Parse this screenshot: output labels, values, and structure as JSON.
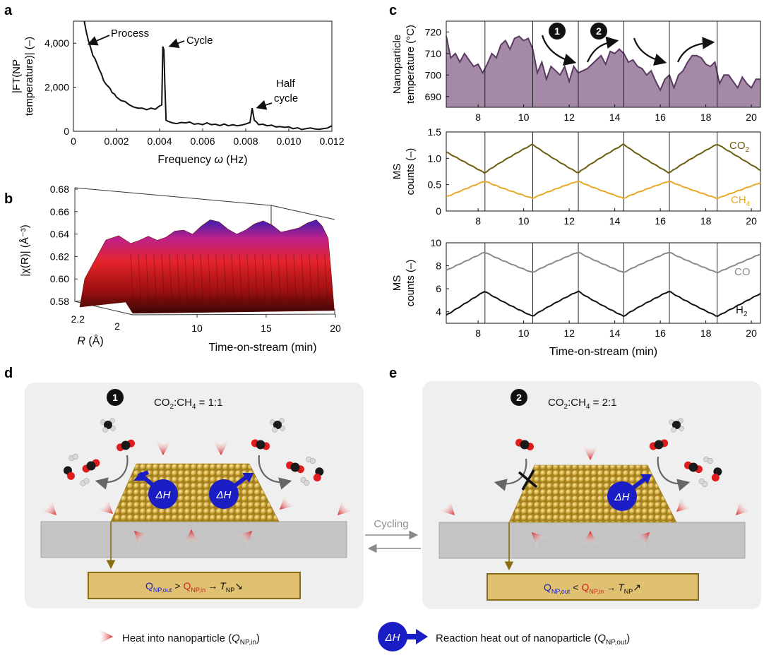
{
  "panel_labels": {
    "a": "a",
    "b": "b",
    "c": "c",
    "d": "d",
    "e": "e"
  },
  "colors": {
    "co2": "#6b5d10",
    "ch4": "#e8a928",
    "co": "#8a8a8a",
    "h2": "#111111",
    "temp_fill": "#a48aa6",
    "temp_line": "#5a3a63",
    "gold": "#c8a033",
    "heat": "#d42020",
    "dh": "#1a1ec4",
    "q_out": "#1a1ec4",
    "q_in": "#d42020",
    "box_fill": "#e0c171",
    "box_stroke": "#8a6d10",
    "substrate": "#c4c4c4",
    "panel_bg": "#efefef"
  },
  "chart_data": [
    {
      "id": "a",
      "type": "line",
      "xlabel_pre": "Frequency ",
      "xlabel_sym": "ω",
      "xlabel_post": " (Hz)",
      "ylabel_line1": "|FT(NP",
      "ylabel_line2": "temperature)| (–)",
      "xlim": [
        0,
        0.012
      ],
      "ylim": [
        0,
        5000
      ],
      "xticks": [
        0,
        0.002,
        0.004,
        0.006,
        0.008,
        0.01,
        0.012
      ],
      "xtick_labels": [
        "0",
        "0.002",
        "0.004",
        "0.006",
        "0.008",
        "0.010",
        "0.012"
      ],
      "yticks": [
        0,
        2000,
        4000
      ],
      "ytick_labels": [
        "0",
        "2,000",
        "4,000"
      ],
      "annotations": {
        "process": "Process",
        "cycle": "Cycle",
        "half_line1": "Half",
        "half_line2": "cycle"
      },
      "x": [
        0.0005,
        0.0006,
        0.0007,
        0.0008,
        0.0009,
        0.001,
        0.0011,
        0.0012,
        0.0013,
        0.0014,
        0.0015,
        0.0016,
        0.0017,
        0.0018,
        0.0019,
        0.002,
        0.0022,
        0.0024,
        0.0026,
        0.0028,
        0.003,
        0.0032,
        0.0034,
        0.0036,
        0.0038,
        0.004,
        0.0041,
        0.00415,
        0.0042,
        0.00425,
        0.0043,
        0.0044,
        0.0046,
        0.0048,
        0.005,
        0.0052,
        0.0054,
        0.0056,
        0.0058,
        0.006,
        0.0062,
        0.0064,
        0.0066,
        0.0068,
        0.007,
        0.0072,
        0.0074,
        0.0076,
        0.0078,
        0.008,
        0.0082,
        0.0083,
        0.0084,
        0.0085,
        0.0086,
        0.0088,
        0.009,
        0.0092,
        0.0094,
        0.0096,
        0.0098,
        0.01,
        0.0102,
        0.0104,
        0.0106,
        0.0108,
        0.011,
        0.0112,
        0.0114,
        0.0116,
        0.0118,
        0.012
      ],
      "y": [
        5000,
        4500,
        4100,
        3800,
        3450,
        3300,
        3050,
        2800,
        2600,
        2300,
        2150,
        2050,
        1950,
        1750,
        1700,
        1550,
        1400,
        1350,
        1200,
        1100,
        1050,
        1050,
        980,
        1050,
        1000,
        1150,
        1200,
        3850,
        3700,
        2000,
        500,
        450,
        380,
        350,
        400,
        380,
        420,
        320,
        350,
        300,
        380,
        300,
        320,
        260,
        330,
        250,
        300,
        250,
        280,
        330,
        400,
        1050,
        500,
        420,
        300,
        320,
        250,
        280,
        200,
        210,
        180,
        200,
        120,
        160,
        80,
        120,
        150,
        110,
        90,
        120,
        150,
        250
      ]
    },
    {
      "id": "b",
      "type": "area",
      "zlabel": "|χ(R)| (Å⁻³)",
      "ylabel_sym": "R",
      "ylabel_post": " (Å)",
      "xlabel": "Time-on-stream (min)",
      "zticks": [
        "0.58",
        "0.60",
        "0.62",
        "0.64",
        "0.66",
        "0.68"
      ],
      "xticks": [
        "10",
        "15",
        "20"
      ],
      "rticks": [
        "2.2",
        "2"
      ],
      "time_axis_min": [
        6.6,
        20.4
      ],
      "envelope_z": [
        0.647,
        0.65,
        0.654,
        0.65,
        0.653,
        0.659,
        0.66,
        0.656,
        0.664,
        0.67,
        0.668,
        0.661,
        0.656,
        0.66,
        0.666,
        0.669,
        0.665,
        0.658,
        0.66,
        0.662,
        0.667,
        0.67,
        0.664,
        0.652,
        0.62,
        0.585
      ],
      "envelope_t": [
        6.6,
        7.2,
        7.8,
        8.4,
        9.0,
        9.6,
        10.2,
        10.8,
        11.4,
        12.0,
        12.6,
        13.2,
        13.8,
        14.4,
        15.0,
        15.6,
        16.2,
        16.8,
        17.4,
        18.0,
        18.6,
        19.2,
        19.6,
        20.0,
        20.2,
        20.4
      ]
    },
    {
      "id": "c1",
      "type": "area",
      "ylabel_line1": "Nanoparticle",
      "ylabel_line2": "temperature (°C)",
      "xlim": [
        6.6,
        20.4
      ],
      "ylim": [
        685,
        725
      ],
      "yticks": [
        690,
        700,
        710,
        720
      ],
      "ytick_labels": [
        "690",
        "700",
        "710",
        "720"
      ],
      "xticks": [
        8,
        10,
        12,
        14,
        16,
        18,
        20
      ],
      "xtick_labels": [
        "8",
        "10",
        "12",
        "14",
        "16",
        "18",
        "20"
      ],
      "vlines": [
        8.3,
        10.4,
        12.4,
        14.4,
        16.4,
        18.5
      ],
      "markers": [
        "1",
        "2"
      ],
      "x": [
        6.6,
        6.8,
        7.0,
        7.2,
        7.4,
        7.6,
        7.8,
        8.0,
        8.2,
        8.4,
        8.6,
        8.8,
        9.0,
        9.2,
        9.4,
        9.6,
        9.8,
        10.0,
        10.2,
        10.4,
        10.6,
        10.8,
        11.0,
        11.2,
        11.4,
        11.6,
        11.8,
        12.0,
        12.2,
        12.4,
        12.6,
        12.8,
        13.0,
        13.2,
        13.4,
        13.6,
        13.8,
        14.0,
        14.2,
        14.4,
        14.6,
        14.8,
        15.0,
        15.2,
        15.4,
        15.6,
        15.8,
        16.0,
        16.2,
        16.4,
        16.6,
        16.8,
        17.0,
        17.2,
        17.4,
        17.6,
        17.8,
        18.0,
        18.2,
        18.4,
        18.6,
        18.8,
        19.0,
        19.2,
        19.4,
        19.6,
        19.8,
        20.0,
        20.2,
        20.4
      ],
      "y": [
        718,
        708,
        710,
        706,
        710,
        707,
        704,
        705,
        701,
        705,
        710,
        708,
        714,
        716,
        712,
        717,
        718,
        716,
        717,
        712,
        701,
        706,
        698,
        704,
        702,
        700,
        704,
        697,
        704,
        701,
        702,
        703,
        705,
        707,
        709,
        705,
        711,
        710,
        712,
        710,
        706,
        707,
        704,
        703,
        700,
        702,
        697,
        693,
        698,
        700,
        694,
        700,
        702,
        706,
        709,
        709,
        708,
        705,
        704,
        706,
        696,
        700,
        700,
        697,
        694,
        699,
        696,
        694,
        698,
        698
      ]
    },
    {
      "id": "c2",
      "type": "line",
      "ylabel_line1": "MS",
      "ylabel_line2": "counts (–)",
      "xlim": [
        6.6,
        20.4
      ],
      "ylim": [
        0,
        1.5
      ],
      "yticks": [
        0,
        0.5,
        1.0,
        1.5
      ],
      "ytick_labels": [
        "0",
        "0.5",
        "1.0",
        "1.5"
      ],
      "xticks": [
        8,
        10,
        12,
        14,
        16,
        18,
        20
      ],
      "xtick_labels": [
        "8",
        "10",
        "12",
        "14",
        "16",
        "18",
        "20"
      ],
      "vlines": [
        8.3,
        10.4,
        12.4,
        14.4,
        16.4,
        18.5
      ],
      "series": [
        {
          "name": "CO2",
          "label": "CO",
          "sub": "2",
          "color_key": "co2",
          "mins": [
            8.3,
            12.4,
            16.4
          ],
          "maxs": [
            10.4,
            14.4,
            18.5
          ],
          "low": 0.72,
          "high": 1.27,
          "start": 1.12
        },
        {
          "name": "CH4",
          "label": "CH",
          "sub": "4",
          "color_key": "ch4",
          "mins": [
            10.4,
            14.4,
            18.5
          ],
          "maxs": [
            8.3,
            12.4,
            16.4
          ],
          "low": 0.24,
          "high": 0.57,
          "start": 0.27
        }
      ]
    },
    {
      "id": "c3",
      "type": "line",
      "ylabel_line1": "MS",
      "ylabel_line2": "counts (–)",
      "xlabel": "Time-on-stream (min)",
      "xlim": [
        6.6,
        20.4
      ],
      "ylim": [
        3,
        10
      ],
      "yticks": [
        4,
        6,
        8,
        10
      ],
      "ytick_labels": [
        "4",
        "6",
        "8",
        "10"
      ],
      "xticks": [
        8,
        10,
        12,
        14,
        16,
        18,
        20
      ],
      "xtick_labels": [
        "8",
        "10",
        "12",
        "14",
        "16",
        "18",
        "20"
      ],
      "vlines": [
        8.3,
        10.4,
        12.4,
        14.4,
        16.4,
        18.5
      ],
      "series": [
        {
          "name": "CO",
          "label": "CO",
          "sub": "",
          "color_key": "co",
          "mins": [
            10.4,
            14.4,
            18.5
          ],
          "maxs": [
            8.3,
            12.4,
            16.4
          ],
          "low": 7.4,
          "high": 9.2,
          "start": 7.6
        },
        {
          "name": "H2",
          "label": "H",
          "sub": "2",
          "color_key": "h2",
          "mins": [
            10.4,
            14.4,
            18.5
          ],
          "maxs": [
            8.3,
            12.4,
            16.4
          ],
          "low": 3.6,
          "high": 5.8,
          "start": 3.7
        }
      ]
    }
  ],
  "panel_d": {
    "marker": "1",
    "ratio_pre": "CO",
    "ratio_sub1": "2",
    "ratio_mid": ":CH",
    "ratio_sub2": "4",
    "ratio_post": " = 1:1",
    "dh": "ΔH",
    "q_out": "Q",
    "q_out_sub": "NP,out",
    "cmp": ">",
    "q_in": "Q",
    "q_in_sub": "NP,in",
    "t": "T",
    "t_sub": "NP",
    "arrow": "→",
    "trend": "↘"
  },
  "panel_e": {
    "marker": "2",
    "ratio_pre": "CO",
    "ratio_sub1": "2",
    "ratio_mid": ":CH",
    "ratio_sub2": "4",
    "ratio_post": " = 2:1",
    "dh": "ΔH",
    "q_out": "Q",
    "q_out_sub": "NP,out",
    "cmp": "<",
    "q_in": "Q",
    "q_in_sub": "NP,in",
    "t": "T",
    "t_sub": "NP",
    "arrow": "→",
    "trend": "↗"
  },
  "cycling_label": "Cycling",
  "legend": {
    "heat_text": "Heat into nanoparticle (",
    "heat_q": "Q",
    "heat_sub": "NP,in",
    "close": ")",
    "dh": "ΔH",
    "reaction_text": "Reaction heat out of nanoparticle (",
    "reaction_q": "Q",
    "reaction_sub": "NP,out"
  }
}
